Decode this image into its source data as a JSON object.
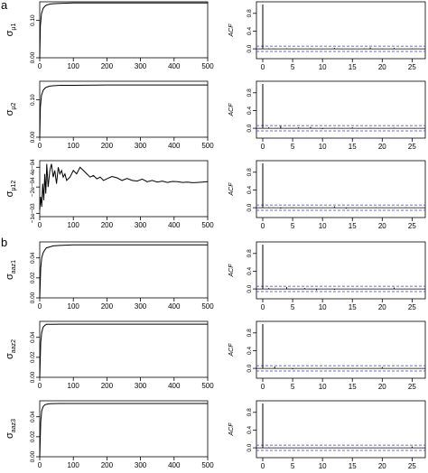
{
  "panel_labels": [
    "a",
    "b"
  ],
  "colors": {
    "trace": "#000000",
    "acf_bar": "#000000",
    "ci": "#3a3ad0",
    "frame": "#000000"
  },
  "chart_data": [
    {
      "type": "line",
      "title": "",
      "xlabel": "",
      "ylabel_main": "σ",
      "ylabel_sub": "μ1",
      "xlim": [
        0,
        500
      ],
      "ylim": [
        0,
        0.15
      ],
      "x_ticks": [
        0,
        100,
        200,
        300,
        400,
        500
      ],
      "y_ticks": [
        0.0,
        0.1
      ],
      "x_tick_labels": [
        "0",
        "100",
        "200",
        "300",
        "400",
        "500"
      ],
      "y_tick_labels": [
        "0.00",
        "0.10"
      ],
      "grid": false,
      "series": [
        {
          "x": [
            0,
            2,
            5,
            10,
            15,
            20,
            30,
            40,
            60,
            100,
            200,
            300,
            400,
            500
          ],
          "y": [
            0.0,
            0.085,
            0.118,
            0.132,
            0.138,
            0.141,
            0.144,
            0.145,
            0.146,
            0.147,
            0.147,
            0.147,
            0.147,
            0.147
          ]
        }
      ]
    },
    {
      "type": "bar",
      "title": "",
      "xlabel": "",
      "ylabel": "ACF",
      "xlim": [
        0,
        26
      ],
      "ylim": [
        0,
        1
      ],
      "x_ticks": [
        0,
        5,
        10,
        15,
        20,
        25
      ],
      "y_ticks": [
        0.0,
        0.4,
        0.8
      ],
      "x_tick_labels": [
        "0",
        "5",
        "10",
        "15",
        "20",
        "25"
      ],
      "y_tick_labels": [
        "0.0",
        "0.4",
        "0.8"
      ],
      "ci": 0.06,
      "grid": false,
      "lags": [
        0,
        1,
        2,
        3,
        4,
        5,
        6,
        7,
        8,
        9,
        10,
        11,
        12,
        13,
        14,
        15,
        16,
        17,
        18,
        19,
        20,
        21,
        22,
        23,
        24,
        25,
        26
      ],
      "values": [
        1.0,
        0.01,
        -0.01,
        0.0,
        0.01,
        -0.01,
        0.0,
        0.0,
        0.01,
        0.0,
        -0.01,
        0.0,
        0.02,
        0.0,
        0.0,
        -0.01,
        0.0,
        0.01,
        0.03,
        0.0,
        -0.01,
        0.0,
        0.02,
        0.0,
        0.0,
        0.01,
        0.0
      ]
    },
    {
      "type": "line",
      "title": "",
      "xlabel": "",
      "ylabel_main": "σ",
      "ylabel_sub": "μ2",
      "xlim": [
        0,
        500
      ],
      "ylim": [
        0,
        0.15
      ],
      "x_ticks": [
        0,
        100,
        200,
        300,
        400,
        500
      ],
      "y_ticks": [
        0.0,
        0.1
      ],
      "x_tick_labels": [
        "0",
        "100",
        "200",
        "300",
        "400",
        "500"
      ],
      "y_tick_labels": [
        "0.00",
        "0.10"
      ],
      "grid": false,
      "series": [
        {
          "x": [
            0,
            2,
            5,
            10,
            15,
            20,
            30,
            40,
            60,
            100,
            200,
            300,
            400,
            500
          ],
          "y": [
            0.0,
            0.08,
            0.112,
            0.125,
            0.131,
            0.134,
            0.137,
            0.138,
            0.139,
            0.139,
            0.14,
            0.14,
            0.14,
            0.14
          ]
        }
      ]
    },
    {
      "type": "bar",
      "title": "",
      "xlabel": "",
      "ylabel": "ACF",
      "xlim": [
        0,
        26
      ],
      "ylim": [
        0,
        1
      ],
      "x_ticks": [
        0,
        5,
        10,
        15,
        20,
        25
      ],
      "y_ticks": [
        0.0,
        0.4,
        0.8
      ],
      "x_tick_labels": [
        "0",
        "5",
        "10",
        "15",
        "20",
        "25"
      ],
      "y_tick_labels": [
        "0.0",
        "0.4",
        "0.8"
      ],
      "ci": 0.06,
      "grid": false,
      "lags": [
        0,
        1,
        2,
        3,
        4,
        5,
        6,
        7,
        8,
        9,
        10,
        11,
        12,
        13,
        14,
        15,
        16,
        17,
        18,
        19,
        20,
        21,
        22,
        23,
        24,
        25,
        26
      ],
      "values": [
        1.0,
        0.02,
        0.0,
        0.05,
        0.0,
        -0.01,
        0.02,
        0.0,
        0.03,
        0.0,
        -0.02,
        0.0,
        0.01,
        0.0,
        0.0,
        0.02,
        0.0,
        0.0,
        0.01,
        0.0,
        0.0,
        0.0,
        0.01,
        0.0,
        0.0,
        0.0,
        0.0
      ]
    },
    {
      "type": "line",
      "title": "",
      "xlabel": "",
      "ylabel_main": "σ",
      "ylabel_sub": "μ12",
      "xlim": [
        0,
        500
      ],
      "ylim": [
        -0.0011,
        0.0006
      ],
      "x_ticks": [
        0,
        100,
        200,
        300,
        400,
        500
      ],
      "y_ticks": [
        -0.001,
        -0.0002,
        0.0004
      ],
      "x_tick_labels": [
        "0",
        "100",
        "200",
        "300",
        "400",
        "500"
      ],
      "y_tick_labels": [
        "−1e−03",
        "−2e−04",
        "4e−04"
      ],
      "grid": false,
      "series": [
        {
          "x": [
            0,
            3,
            6,
            9,
            12,
            15,
            18,
            21,
            25,
            30,
            35,
            40,
            45,
            50,
            55,
            60,
            65,
            70,
            75,
            80,
            90,
            100,
            110,
            120,
            130,
            140,
            150,
            160,
            170,
            180,
            190,
            200,
            215,
            230,
            245,
            260,
            275,
            290,
            305,
            320,
            335,
            350,
            365,
            380,
            395,
            410,
            425,
            440,
            455,
            470,
            485,
            500
          ],
          "y": [
            -0.0009,
            -0.0005,
            -0.0008,
            -0.0001,
            -0.0006,
            0.0002,
            -0.0004,
            0.0005,
            -0.0002,
            0.0003,
            0.0005,
            0.0001,
            0.0003,
            -0.0001,
            0.0004,
            0.0002,
            0.0003,
            0.0001,
            0.0002,
            0.0,
            0.0001,
            0.0003,
            0.0002,
            0.0004,
            0.0003,
            0.0002,
            0.0001,
            0.00015,
            5e-05,
            0.0001,
            0.0,
            5e-05,
            0.00012,
            8e-05,
            0.0,
            6e-05,
            0.0,
            -2e-05,
            4e-05,
            -4e-05,
            0.0,
            -5e-05,
            -2e-05,
            -6e-05,
            -3e-05,
            -4e-05,
            -6e-05,
            -5e-05,
            -7e-05,
            -6e-05,
            -5e-05,
            -4e-05
          ]
        }
      ]
    },
    {
      "type": "bar",
      "title": "",
      "xlabel": "",
      "ylabel": "ACF",
      "xlim": [
        0,
        26
      ],
      "ylim": [
        0,
        1
      ],
      "x_ticks": [
        0,
        5,
        10,
        15,
        20,
        25
      ],
      "y_ticks": [
        0.0,
        0.4,
        0.8
      ],
      "x_tick_labels": [
        "0",
        "5",
        "10",
        "15",
        "20",
        "25"
      ],
      "y_tick_labels": [
        "0.0",
        "0.4",
        "0.8"
      ],
      "ci": 0.06,
      "grid": false,
      "lags": [
        0,
        1,
        2,
        3,
        4,
        5,
        6,
        7,
        8,
        9,
        10,
        11,
        12,
        13,
        14,
        15,
        16,
        17,
        18,
        19,
        20,
        21,
        22,
        23,
        24,
        25,
        26
      ],
      "values": [
        1.0,
        0.01,
        0.0,
        -0.02,
        0.0,
        0.01,
        0.0,
        0.0,
        -0.01,
        0.0,
        0.0,
        0.0,
        0.03,
        0.0,
        -0.02,
        0.0,
        0.0,
        0.0,
        0.0,
        0.01,
        0.0,
        0.0,
        0.0,
        0.0,
        0.01,
        0.0,
        0.0
      ]
    },
    {
      "type": "line",
      "title": "",
      "xlabel": "",
      "ylabel_main": "σ",
      "ylabel_sub": "aaz1",
      "xlim": [
        0,
        500
      ],
      "ylim": [
        0,
        0.056
      ],
      "x_ticks": [
        0,
        100,
        200,
        300,
        400,
        500
      ],
      "y_ticks": [
        0.0,
        0.02,
        0.04
      ],
      "x_tick_labels": [
        "0",
        "100",
        "200",
        "300",
        "400",
        "500"
      ],
      "y_tick_labels": [
        "0.00",
        "0.02",
        "0.04"
      ],
      "grid": false,
      "series": [
        {
          "x": [
            0,
            3,
            6,
            10,
            15,
            20,
            30,
            40,
            60,
            100,
            200,
            300,
            400,
            500
          ],
          "y": [
            0.0,
            0.03,
            0.04,
            0.045,
            0.048,
            0.05,
            0.051,
            0.052,
            0.0525,
            0.053,
            0.053,
            0.053,
            0.053,
            0.053
          ]
        }
      ]
    },
    {
      "type": "bar",
      "title": "",
      "xlabel": "",
      "ylabel": "ACF",
      "xlim": [
        0,
        26
      ],
      "ylim": [
        0,
        1
      ],
      "x_ticks": [
        0,
        5,
        10,
        15,
        20,
        25
      ],
      "y_ticks": [
        0.0,
        0.4,
        0.8
      ],
      "x_tick_labels": [
        "0",
        "5",
        "10",
        "15",
        "20",
        "25"
      ],
      "y_tick_labels": [
        "0.0",
        "0.4",
        "0.8"
      ],
      "ci": 0.06,
      "grid": false,
      "lags": [
        0,
        1,
        2,
        3,
        4,
        5,
        6,
        7,
        8,
        9,
        10,
        11,
        12,
        13,
        14,
        15,
        16,
        17,
        18,
        19,
        20,
        21,
        22,
        23,
        24,
        25,
        26
      ],
      "values": [
        1.0,
        0.02,
        0.0,
        0.0,
        0.04,
        0.0,
        0.0,
        0.02,
        0.0,
        -0.03,
        0.0,
        0.0,
        -0.02,
        0.0,
        0.0,
        0.0,
        0.0,
        0.0,
        0.0,
        0.0,
        0.0,
        0.0,
        0.03,
        0.0,
        0.0,
        0.0,
        0.0
      ]
    },
    {
      "type": "line",
      "title": "",
      "xlabel": "",
      "ylabel_main": "σ",
      "ylabel_sub": "aaz2",
      "xlim": [
        0,
        500
      ],
      "ylim": [
        0,
        0.056
      ],
      "x_ticks": [
        0,
        100,
        200,
        300,
        400,
        500
      ],
      "y_ticks": [
        0.0,
        0.02,
        0.04
      ],
      "x_tick_labels": [
        "0",
        "100",
        "200",
        "300",
        "400",
        "500"
      ],
      "y_tick_labels": [
        "0.00",
        "0.02",
        "0.04"
      ],
      "grid": false,
      "series": [
        {
          "x": [
            0,
            3,
            6,
            10,
            15,
            20,
            30,
            40,
            60,
            100,
            200,
            300,
            400,
            500
          ],
          "y": [
            0.0,
            0.035,
            0.045,
            0.05,
            0.052,
            0.053,
            0.053,
            0.053,
            0.0532,
            0.0532,
            0.0532,
            0.0532,
            0.0532,
            0.0532
          ]
        }
      ]
    },
    {
      "type": "bar",
      "title": "",
      "xlabel": "",
      "ylabel": "ACF",
      "xlim": [
        0,
        26
      ],
      "ylim": [
        0,
        1
      ],
      "x_ticks": [
        0,
        5,
        10,
        15,
        20,
        25
      ],
      "y_ticks": [
        0.0,
        0.4,
        0.8
      ],
      "x_tick_labels": [
        "0",
        "5",
        "10",
        "15",
        "20",
        "25"
      ],
      "y_tick_labels": [
        "0.0",
        "0.4",
        "0.8"
      ],
      "ci": 0.06,
      "grid": false,
      "lags": [
        0,
        1,
        2,
        3,
        4,
        5,
        6,
        7,
        8,
        9,
        10,
        11,
        12,
        13,
        14,
        15,
        16,
        17,
        18,
        19,
        20,
        21,
        22,
        23,
        24,
        25,
        26
      ],
      "values": [
        1.0,
        0.0,
        0.04,
        0.0,
        0.0,
        -0.02,
        0.0,
        0.0,
        0.0,
        0.0,
        0.0,
        0.0,
        0.0,
        0.0,
        0.0,
        0.0,
        0.0,
        0.0,
        0.0,
        0.0,
        0.03,
        0.0,
        0.0,
        0.0,
        0.0,
        0.0,
        0.0
      ]
    },
    {
      "type": "line",
      "title": "",
      "xlabel": "",
      "ylabel_main": "σ",
      "ylabel_sub": "aaz3",
      "xlim": [
        0,
        500
      ],
      "ylim": [
        0,
        0.056
      ],
      "x_ticks": [
        0,
        100,
        200,
        300,
        400,
        500
      ],
      "y_ticks": [
        0.0,
        0.02,
        0.04
      ],
      "x_tick_labels": [
        "0",
        "100",
        "200",
        "300",
        "400",
        "500"
      ],
      "y_tick_labels": [
        "0.00",
        "0.02",
        "0.04"
      ],
      "grid": false,
      "series": [
        {
          "x": [
            0,
            3,
            6,
            10,
            15,
            20,
            30,
            40,
            60,
            100,
            200,
            300,
            400,
            500
          ],
          "y": [
            0.0,
            0.035,
            0.046,
            0.05,
            0.052,
            0.0525,
            0.053,
            0.0532,
            0.0533,
            0.0533,
            0.0533,
            0.0533,
            0.0533,
            0.0533
          ]
        }
      ]
    },
    {
      "type": "bar",
      "title": "",
      "xlabel": "",
      "ylabel": "ACF",
      "xlim": [
        0,
        26
      ],
      "ylim": [
        0,
        1
      ],
      "x_ticks": [
        0,
        5,
        10,
        15,
        20,
        25
      ],
      "y_ticks": [
        0.0,
        0.4,
        0.8
      ],
      "x_tick_labels": [
        "0",
        "5",
        "10",
        "15",
        "20",
        "25"
      ],
      "y_tick_labels": [
        "0.0",
        "0.4",
        "0.8"
      ],
      "ci": 0.06,
      "grid": false,
      "lags": [
        0,
        1,
        2,
        3,
        4,
        5,
        6,
        7,
        8,
        9,
        10,
        11,
        12,
        13,
        14,
        15,
        16,
        17,
        18,
        19,
        20,
        21,
        22,
        23,
        24,
        25,
        26
      ],
      "values": [
        1.0,
        0.01,
        0.0,
        0.0,
        0.0,
        0.0,
        0.0,
        0.0,
        0.0,
        0.0,
        0.0,
        0.0,
        0.0,
        0.0,
        0.0,
        0.0,
        0.0,
        0.0,
        0.0,
        0.0,
        0.0,
        0.0,
        0.0,
        0.0,
        0.0,
        0.03,
        0.0
      ]
    }
  ]
}
